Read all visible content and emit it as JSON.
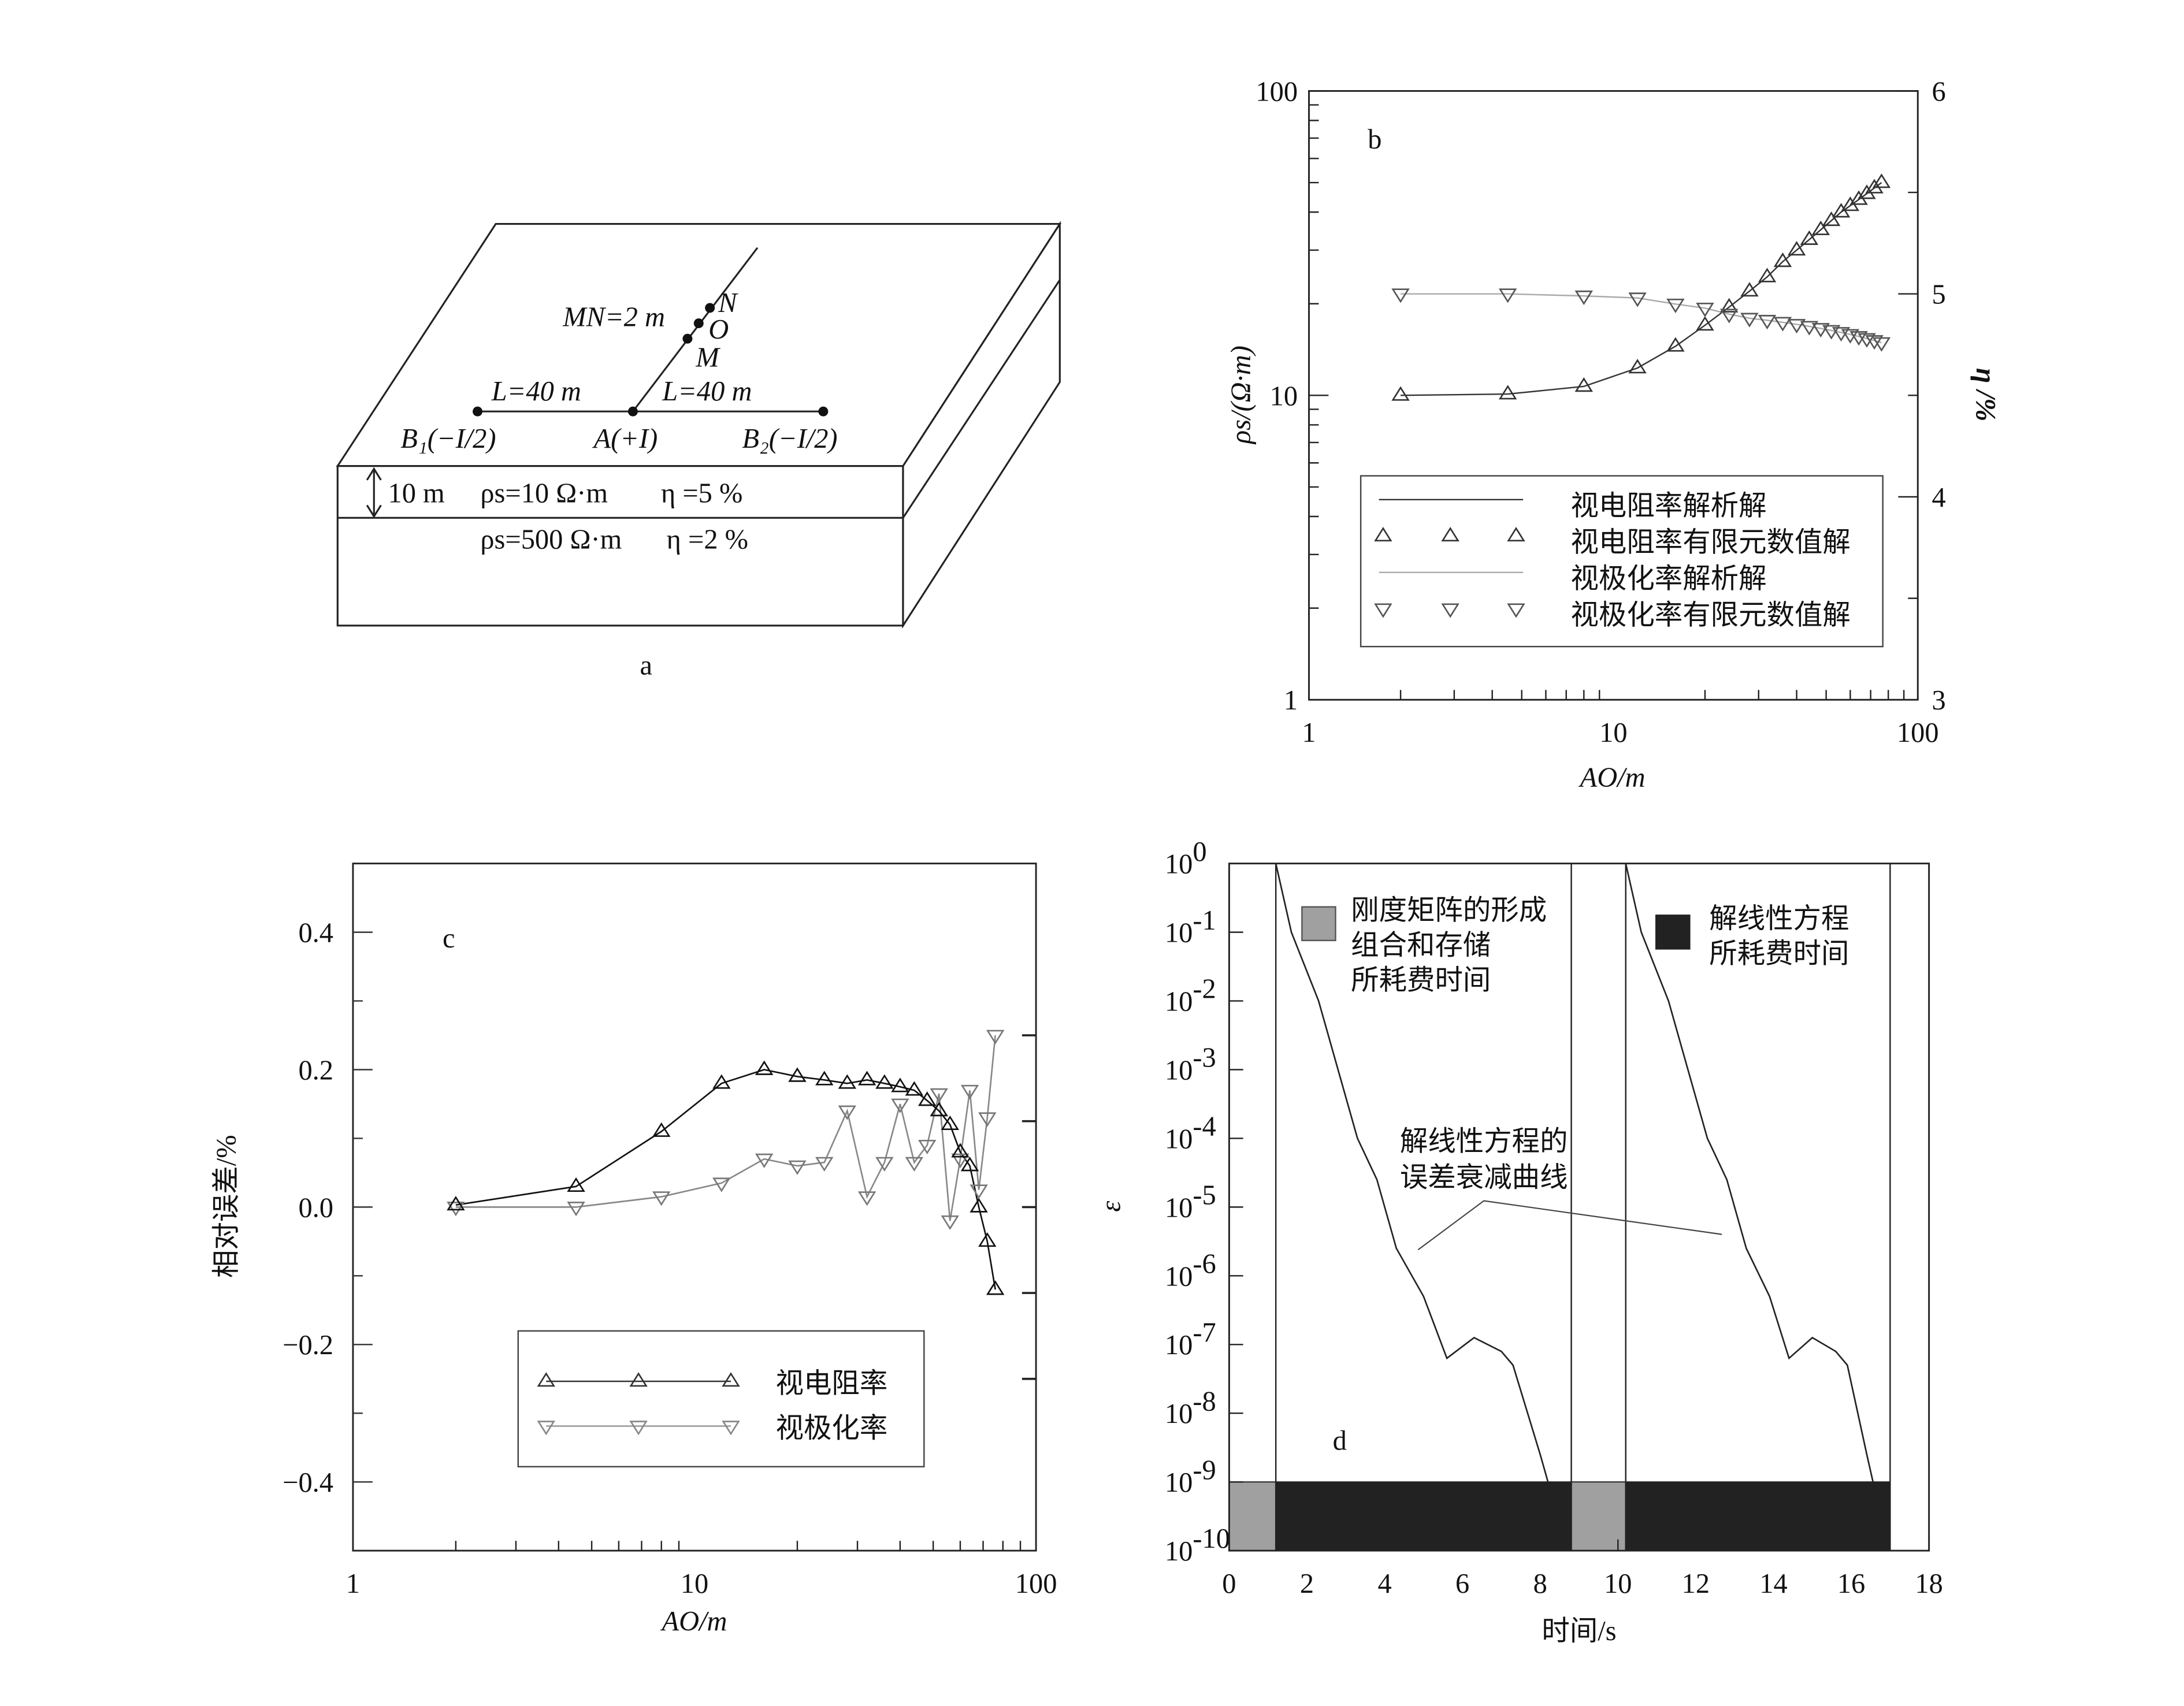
{
  "panel_a": {
    "label": "a",
    "mn": "MN=2 m",
    "n": "N",
    "o": "O",
    "m": "M",
    "l_left": "L=40 m",
    "l_right": "L=40 m",
    "b1": "B₁(−I/2)",
    "a_elec": "A(+I)",
    "b2": "B₂(−I/2)",
    "thickness": "10 m",
    "layer1_rho": "ρs=10 Ω·m",
    "layer1_eta": "η =5 %",
    "layer2_rho": "ρs=500 Ω·m",
    "layer2_eta": "η =2 %"
  },
  "chart_data": [
    {
      "id": "b",
      "type": "line",
      "panel_label": "b",
      "xlabel": "AO/m",
      "ylabel": "ρs/(Ω·m)",
      "y2label": "η /%",
      "xscale": "log",
      "xlim": [
        1,
        100
      ],
      "yscale": "log",
      "ylim": [
        1,
        100
      ],
      "y2lim": [
        3,
        6
      ],
      "xticks": [
        "1",
        "10",
        "100"
      ],
      "yticks": [
        "1",
        "10",
        "100"
      ],
      "y2ticks": [
        "3",
        "4",
        "5",
        "6"
      ],
      "legend_position": "bottom",
      "legend": [
        "视电阻率解析解",
        "视电阻率有限元数值解",
        "视极化率解析解",
        "视极化率有限元数值解"
      ],
      "x": [
        2,
        4.5,
        8,
        12,
        16,
        20,
        24,
        28,
        32,
        36,
        40,
        44,
        48,
        52,
        56,
        60,
        64,
        68,
        72,
        76
      ],
      "series": [
        {
          "name": "视电阻率",
          "axis": "left",
          "values": [
            10,
            10.1,
            10.7,
            12.3,
            14.5,
            17,
            19.5,
            22,
            24.5,
            27.5,
            30,
            32.5,
            35,
            37.5,
            40,
            42,
            44,
            46,
            48,
            50
          ]
        },
        {
          "name": "视极化率",
          "axis": "right",
          "values": [
            5.0,
            5.0,
            4.99,
            4.98,
            4.95,
            4.93,
            4.9,
            4.88,
            4.87,
            4.86,
            4.85,
            4.84,
            4.83,
            4.82,
            4.81,
            4.8,
            4.79,
            4.78,
            4.77,
            4.76
          ]
        }
      ]
    },
    {
      "id": "c",
      "type": "line",
      "panel_label": "c",
      "xlabel": "AO/m",
      "ylabel": "相对误差/%",
      "xscale": "log",
      "xlim": [
        1,
        100
      ],
      "ylim": [
        -0.5,
        0.5
      ],
      "xticks": [
        "1",
        "10",
        "100"
      ],
      "yticks": [
        "0.4",
        "0.2",
        "0.0",
        "−0.2",
        "−0.4"
      ],
      "legend_position": "bottom-center",
      "legend": [
        "视电阻率",
        "视极化率"
      ],
      "x": [
        2,
        4.5,
        8,
        12,
        16,
        20,
        24,
        28,
        32,
        36,
        40,
        44,
        48,
        52,
        56,
        60,
        64,
        68,
        72,
        76
      ],
      "series": [
        {
          "name": "视电阻率",
          "values": [
            0.003,
            0.03,
            0.11,
            0.18,
            0.2,
            0.19,
            0.185,
            0.18,
            0.185,
            0.18,
            0.175,
            0.17,
            0.155,
            0.14,
            0.12,
            0.08,
            0.06,
            0.0,
            -0.05,
            -0.12
          ]
        },
        {
          "name": "视极化率",
          "values": [
            0.0,
            0.0,
            0.015,
            0.035,
            0.07,
            0.06,
            0.065,
            0.14,
            0.015,
            0.065,
            0.15,
            0.065,
            0.09,
            0.165,
            -0.02,
            0.07,
            0.17,
            0.025,
            0.13,
            0.25
          ]
        }
      ]
    },
    {
      "id": "d",
      "type": "line",
      "panel_label": "d",
      "xlabel": "时间/s",
      "ylabel": "ε",
      "xlim": [
        0,
        18
      ],
      "yscale": "log",
      "ylim": [
        1e-10,
        1
      ],
      "xticks": [
        "0",
        "2",
        "4",
        "6",
        "8",
        "10",
        "12",
        "14",
        "16",
        "18"
      ],
      "yticks_exp": [
        "0",
        "-1",
        "-2",
        "-3",
        "-4",
        "-5",
        "-6",
        "-7",
        "-8",
        "-9",
        "-10"
      ],
      "ytick_base": "10",
      "legend": [
        "刚度矩阵的形成",
        "组合和存储",
        "所耗费时间",
        "解线性方程",
        "所耗费时间"
      ],
      "annotation": [
        "解线性方程的",
        "误差衰减曲线"
      ],
      "bars": [
        {
          "kind": "assembly",
          "start": 0,
          "end": 1.2,
          "color": "#a0a0a0"
        },
        {
          "kind": "solve",
          "start": 1.2,
          "end": 8.8,
          "color": "#222222"
        },
        {
          "kind": "assembly",
          "start": 8.8,
          "end": 10.2,
          "color": "#a0a0a0"
        },
        {
          "kind": "solve",
          "start": 10.2,
          "end": 17.0,
          "color": "#222222"
        }
      ],
      "series": [
        {
          "name": "误差衰减曲线 1",
          "t": [
            1.2,
            1.6,
            2.3,
            2.8,
            3.3,
            3.8,
            4.3,
            5.0,
            5.6,
            6.3,
            7.0,
            7.3,
            8.0,
            8.5,
            8.8
          ],
          "log10_eps": [
            0,
            -1,
            -2,
            -3,
            -4,
            -4.6,
            -5.6,
            -6.3,
            -7.2,
            -6.9,
            -7.1,
            -7.3,
            -8.6,
            -9.6,
            -10
          ]
        },
        {
          "name": "误差衰减曲线 2",
          "t": [
            10.2,
            10.6,
            11.3,
            11.8,
            12.3,
            12.8,
            13.3,
            13.9,
            14.4,
            15.0,
            15.6,
            15.9,
            16.4,
            16.8,
            17.0
          ],
          "log10_eps": [
            0,
            -1,
            -2,
            -3,
            -4,
            -4.6,
            -5.6,
            -6.3,
            -7.2,
            -6.9,
            -7.1,
            -7.3,
            -8.6,
            -9.6,
            -10
          ]
        }
      ]
    }
  ]
}
